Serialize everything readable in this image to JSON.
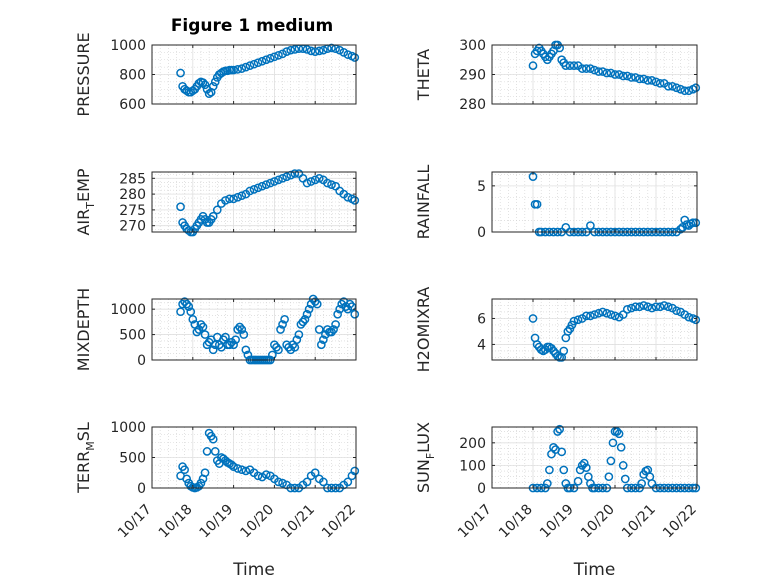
{
  "title": "Figure 1 medium",
  "xlabel": "Time",
  "x_tick_labels": [
    "10/17",
    "10/18",
    "10/19",
    "10/20",
    "10/21",
    "10/22"
  ],
  "marker_color": "#0072BD",
  "chart_data": [
    {
      "type": "scatter",
      "ylabel": "PRESSURE",
      "ylim": [
        600,
        1000
      ],
      "yticks": [
        600,
        800,
        1000
      ],
      "xlim": [
        0,
        5
      ],
      "grid": true,
      "x": [
        0.7,
        0.75,
        0.8,
        0.85,
        0.9,
        0.95,
        1.0,
        1.05,
        1.1,
        1.15,
        1.2,
        1.25,
        1.3,
        1.35,
        1.4,
        1.45,
        1.5,
        1.55,
        1.6,
        1.65,
        1.7,
        1.75,
        1.8,
        1.85,
        1.9,
        1.95,
        2.0,
        2.1,
        2.2,
        2.3,
        2.4,
        2.5,
        2.6,
        2.7,
        2.8,
        2.9,
        3.0,
        3.1,
        3.2,
        3.3,
        3.4,
        3.5,
        3.6,
        3.7,
        3.8,
        3.9,
        4.0,
        4.1,
        4.2,
        4.3,
        4.4,
        4.5,
        4.6,
        4.7,
        4.8,
        4.9,
        4.97
      ],
      "values": [
        810,
        720,
        700,
        690,
        680,
        680,
        690,
        700,
        720,
        740,
        750,
        745,
        730,
        700,
        670,
        680,
        720,
        750,
        780,
        800,
        810,
        820,
        825,
        825,
        830,
        830,
        830,
        835,
        840,
        850,
        860,
        870,
        880,
        890,
        900,
        910,
        920,
        930,
        940,
        955,
        965,
        970,
        975,
        975,
        970,
        960,
        955,
        960,
        965,
        975,
        980,
        975,
        965,
        950,
        935,
        925,
        915
      ]
    },
    {
      "type": "scatter",
      "ylabel": "THETA",
      "ylim": [
        280,
        300
      ],
      "yticks": [
        280,
        290,
        300
      ],
      "xlim": [
        0,
        5
      ],
      "grid": true,
      "x": [
        1.0,
        1.05,
        1.1,
        1.15,
        1.2,
        1.25,
        1.3,
        1.35,
        1.4,
        1.45,
        1.5,
        1.55,
        1.6,
        1.65,
        1.7,
        1.75,
        1.8,
        1.9,
        2.0,
        2.1,
        2.2,
        2.3,
        2.4,
        2.5,
        2.6,
        2.7,
        2.8,
        2.9,
        3.0,
        3.1,
        3.2,
        3.3,
        3.4,
        3.5,
        3.6,
        3.7,
        3.8,
        3.9,
        4.0,
        4.1,
        4.2,
        4.3,
        4.4,
        4.5,
        4.6,
        4.7,
        4.8,
        4.9,
        4.97
      ],
      "values": [
        293,
        297,
        298,
        299,
        298,
        297,
        296,
        295,
        296,
        297,
        298,
        300,
        300,
        299,
        295,
        294,
        293,
        293,
        293,
        293,
        292,
        292,
        292,
        291.5,
        291,
        291,
        290.5,
        290.5,
        290,
        290,
        289.5,
        289.5,
        289,
        289,
        288.5,
        288.5,
        288,
        288,
        287.5,
        287,
        287,
        286,
        286,
        285.5,
        285,
        284.5,
        284.5,
        285,
        285.5
      ]
    },
    {
      "type": "scatter",
      "ylabel": "AIR_TEMP",
      "ylim": [
        268,
        287
      ],
      "yticks": [
        270,
        275,
        280,
        285
      ],
      "xlim": [
        0,
        5
      ],
      "grid": true,
      "x": [
        0.7,
        0.75,
        0.8,
        0.85,
        0.9,
        0.95,
        1.0,
        1.05,
        1.1,
        1.15,
        1.2,
        1.25,
        1.3,
        1.35,
        1.4,
        1.45,
        1.5,
        1.6,
        1.7,
        1.8,
        1.9,
        2.0,
        2.1,
        2.2,
        2.3,
        2.4,
        2.5,
        2.6,
        2.7,
        2.8,
        2.9,
        3.0,
        3.1,
        3.2,
        3.3,
        3.4,
        3.5,
        3.6,
        3.7,
        3.8,
        3.9,
        4.0,
        4.1,
        4.2,
        4.3,
        4.4,
        4.5,
        4.6,
        4.7,
        4.8,
        4.9,
        4.97
      ],
      "values": [
        276,
        271,
        270,
        269,
        268.5,
        268,
        268,
        269,
        270,
        271,
        272,
        273,
        272,
        271,
        271,
        272,
        273,
        275,
        277,
        278,
        278.5,
        278.5,
        279,
        279.5,
        280,
        281,
        281.5,
        282,
        282.5,
        283,
        283.5,
        284,
        284.5,
        285,
        285.5,
        286,
        286.5,
        286.5,
        285,
        283.5,
        284,
        284.5,
        285,
        284.5,
        283.5,
        283,
        282.5,
        281,
        280,
        279,
        278.5,
        278
      ]
    },
    {
      "type": "scatter",
      "ylabel": "RAINFALL",
      "ylim": [
        0,
        6.5
      ],
      "yticks": [
        0,
        5
      ],
      "xlim": [
        0,
        5
      ],
      "grid": true,
      "x": [
        1.0,
        1.05,
        1.1,
        1.15,
        1.2,
        1.3,
        1.4,
        1.5,
        1.6,
        1.7,
        1.8,
        1.9,
        2.0,
        2.1,
        2.2,
        2.3,
        2.4,
        2.5,
        2.6,
        2.7,
        2.8,
        2.9,
        3.0,
        3.1,
        3.2,
        3.3,
        3.4,
        3.5,
        3.6,
        3.7,
        3.8,
        3.9,
        4.0,
        4.1,
        4.2,
        4.3,
        4.4,
        4.5,
        4.6,
        4.65,
        4.7,
        4.75,
        4.8,
        4.85,
        4.9,
        4.97
      ],
      "values": [
        6,
        3,
        3,
        0,
        0,
        0,
        0,
        0,
        0,
        0,
        0.5,
        0,
        0,
        0,
        0,
        0,
        0.7,
        0,
        0,
        0,
        0,
        0,
        0,
        0,
        0,
        0,
        0,
        0,
        0,
        0,
        0,
        0,
        0,
        0,
        0,
        0,
        0,
        0,
        0.3,
        0.5,
        1.3,
        0.8,
        0.7,
        0.9,
        1.0,
        1.0
      ]
    },
    {
      "type": "scatter",
      "ylabel": "MIXDEPTH",
      "ylim": [
        0,
        1200
      ],
      "yticks": [
        0,
        500,
        1000
      ],
      "xlim": [
        0,
        5
      ],
      "grid": true,
      "x": [
        0.7,
        0.75,
        0.8,
        0.85,
        0.9,
        0.95,
        1.0,
        1.05,
        1.1,
        1.15,
        1.2,
        1.25,
        1.3,
        1.35,
        1.4,
        1.45,
        1.5,
        1.55,
        1.6,
        1.65,
        1.7,
        1.75,
        1.8,
        1.85,
        1.9,
        1.95,
        2.0,
        2.05,
        2.1,
        2.15,
        2.2,
        2.25,
        2.3,
        2.35,
        2.4,
        2.45,
        2.5,
        2.55,
        2.6,
        2.65,
        2.7,
        2.75,
        2.8,
        2.85,
        2.9,
        2.95,
        3.0,
        3.05,
        3.1,
        3.15,
        3.2,
        3.25,
        3.3,
        3.35,
        3.4,
        3.45,
        3.5,
        3.55,
        3.6,
        3.65,
        3.7,
        3.75,
        3.8,
        3.85,
        3.9,
        3.95,
        4.0,
        4.05,
        4.1,
        4.15,
        4.2,
        4.25,
        4.3,
        4.35,
        4.4,
        4.45,
        4.5,
        4.55,
        4.6,
        4.65,
        4.7,
        4.75,
        4.8,
        4.85,
        4.9,
        4.97
      ],
      "values": [
        950,
        1100,
        1150,
        1100,
        1050,
        950,
        800,
        700,
        550,
        600,
        700,
        650,
        500,
        300,
        350,
        400,
        200,
        300,
        450,
        300,
        250,
        400,
        450,
        300,
        300,
        350,
        300,
        400,
        600,
        650,
        600,
        500,
        200,
        100,
        0,
        0,
        0,
        0,
        0,
        0,
        0,
        0,
        0,
        0,
        0,
        100,
        300,
        250,
        200,
        600,
        700,
        800,
        300,
        250,
        200,
        300,
        250,
        400,
        500,
        700,
        750,
        800,
        900,
        1000,
        1100,
        1200,
        1150,
        1100,
        600,
        300,
        400,
        500,
        600,
        550,
        550,
        600,
        700,
        900,
        1000,
        1100,
        1150,
        1050,
        1000,
        1100,
        1050,
        900
      ]
    },
    {
      "type": "scatter",
      "ylabel": "H2OMIXRA",
      "ylim": [
        2.8,
        7.5
      ],
      "yticks": [
        4,
        6
      ],
      "xlim": [
        0,
        5
      ],
      "grid": true,
      "x": [
        1.0,
        1.05,
        1.1,
        1.15,
        1.2,
        1.25,
        1.3,
        1.35,
        1.4,
        1.45,
        1.5,
        1.55,
        1.6,
        1.65,
        1.7,
        1.75,
        1.8,
        1.85,
        1.9,
        1.95,
        2.0,
        2.1,
        2.2,
        2.3,
        2.4,
        2.5,
        2.6,
        2.7,
        2.8,
        2.9,
        3.0,
        3.1,
        3.2,
        3.3,
        3.4,
        3.5,
        3.6,
        3.7,
        3.8,
        3.9,
        4.0,
        4.1,
        4.2,
        4.3,
        4.4,
        4.5,
        4.6,
        4.7,
        4.8,
        4.9,
        4.97
      ],
      "values": [
        6,
        4.5,
        4,
        3.8,
        3.6,
        3.5,
        3.6,
        3.8,
        3.8,
        3.7,
        3.5,
        3.3,
        3.1,
        3.0,
        3.0,
        3.5,
        4.5,
        5.0,
        5.2,
        5.5,
        5.8,
        5.9,
        6.0,
        6.2,
        6.2,
        6.3,
        6.4,
        6.5,
        6.4,
        6.3,
        6.2,
        6.1,
        6.3,
        6.7,
        6.8,
        6.9,
        6.9,
        7.0,
        6.9,
        6.8,
        6.9,
        6.9,
        7.0,
        6.9,
        6.8,
        6.6,
        6.5,
        6.3,
        6.1,
        6.0,
        5.9
      ]
    },
    {
      "type": "scatter",
      "ylabel": "TERR_MSL",
      "ylim": [
        0,
        1000
      ],
      "yticks": [
        0,
        500,
        1000
      ],
      "xlim": [
        0,
        5
      ],
      "grid": true,
      "x": [
        0.7,
        0.75,
        0.8,
        0.85,
        0.9,
        0.95,
        1.0,
        1.05,
        1.1,
        1.15,
        1.2,
        1.25,
        1.3,
        1.35,
        1.4,
        1.45,
        1.5,
        1.55,
        1.6,
        1.65,
        1.7,
        1.75,
        1.8,
        1.85,
        1.9,
        1.95,
        2.0,
        2.1,
        2.2,
        2.3,
        2.4,
        2.5,
        2.6,
        2.7,
        2.8,
        2.9,
        3.0,
        3.1,
        3.2,
        3.3,
        3.4,
        3.5,
        3.6,
        3.7,
        3.8,
        3.9,
        4.0,
        4.1,
        4.2,
        4.3,
        4.4,
        4.5,
        4.6,
        4.7,
        4.8,
        4.9,
        4.97
      ],
      "values": [
        200,
        350,
        300,
        150,
        80,
        30,
        10,
        0,
        10,
        30,
        80,
        150,
        250,
        600,
        900,
        850,
        800,
        600,
        450,
        400,
        500,
        480,
        450,
        420,
        400,
        380,
        350,
        320,
        300,
        280,
        300,
        250,
        200,
        180,
        220,
        200,
        150,
        100,
        80,
        50,
        0,
        0,
        0,
        50,
        100,
        200,
        250,
        150,
        100,
        0,
        0,
        0,
        0,
        50,
        100,
        200,
        280
      ]
    },
    {
      "type": "scatter",
      "ylabel": "SUN_FLUX",
      "ylim": [
        0,
        270
      ],
      "yticks": [
        0,
        100,
        200
      ],
      "xlim": [
        0,
        5
      ],
      "grid": true,
      "x": [
        1.0,
        1.1,
        1.2,
        1.3,
        1.35,
        1.4,
        1.45,
        1.5,
        1.55,
        1.6,
        1.65,
        1.7,
        1.75,
        1.8,
        1.85,
        1.9,
        2.0,
        2.1,
        2.15,
        2.2,
        2.25,
        2.3,
        2.35,
        2.4,
        2.45,
        2.5,
        2.6,
        2.7,
        2.8,
        2.85,
        2.9,
        2.95,
        3.0,
        3.05,
        3.1,
        3.15,
        3.2,
        3.25,
        3.3,
        3.4,
        3.5,
        3.6,
        3.65,
        3.7,
        3.75,
        3.8,
        3.85,
        3.9,
        4.0,
        4.1,
        4.2,
        4.3,
        4.4,
        4.5,
        4.6,
        4.7,
        4.8,
        4.9,
        4.97
      ],
      "values": [
        0,
        0,
        0,
        0,
        20,
        80,
        150,
        180,
        170,
        250,
        260,
        160,
        80,
        20,
        0,
        0,
        0,
        30,
        80,
        100,
        110,
        90,
        50,
        20,
        0,
        0,
        0,
        0,
        0,
        50,
        120,
        200,
        250,
        250,
        240,
        180,
        100,
        40,
        0,
        0,
        0,
        0,
        20,
        60,
        75,
        80,
        50,
        20,
        0,
        0,
        0,
        0,
        0,
        0,
        0,
        0,
        0,
        0,
        0
      ]
    }
  ]
}
